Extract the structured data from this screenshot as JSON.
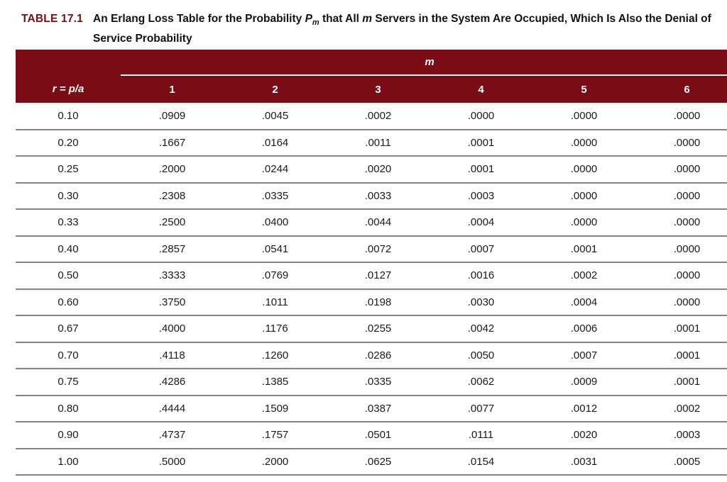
{
  "title": {
    "label": "TABLE 17.1",
    "parts": {
      "t1": "An Erlang Loss Table for the Probability ",
      "p_symbol": "P",
      "p_subscript": "m",
      "t2": " that All ",
      "m_symbol": "m",
      "t3a": " Servers in the System Are Occupied, Which Is Also the Denial of",
      "t3b": "Service Probability"
    }
  },
  "table": {
    "group_header": "m",
    "corner_label": "r = p/a",
    "columns": [
      "1",
      "2",
      "3",
      "4",
      "5",
      "6"
    ],
    "rows": [
      {
        "r": "0.10",
        "values": [
          ".0909",
          ".0045",
          ".0002",
          ".0000",
          ".0000",
          ".0000"
        ]
      },
      {
        "r": "0.20",
        "values": [
          ".1667",
          ".0164",
          ".0011",
          ".0001",
          ".0000",
          ".0000"
        ]
      },
      {
        "r": "0.25",
        "values": [
          ".2000",
          ".0244",
          ".0020",
          ".0001",
          ".0000",
          ".0000"
        ]
      },
      {
        "r": "0.30",
        "values": [
          ".2308",
          ".0335",
          ".0033",
          ".0003",
          ".0000",
          ".0000"
        ]
      },
      {
        "r": "0.33",
        "values": [
          ".2500",
          ".0400",
          ".0044",
          ".0004",
          ".0000",
          ".0000"
        ]
      },
      {
        "r": "0.40",
        "values": [
          ".2857",
          ".0541",
          ".0072",
          ".0007",
          ".0001",
          ".0000"
        ]
      },
      {
        "r": "0.50",
        "values": [
          ".3333",
          ".0769",
          ".0127",
          ".0016",
          ".0002",
          ".0000"
        ]
      },
      {
        "r": "0.60",
        "values": [
          ".3750",
          ".1011",
          ".0198",
          ".0030",
          ".0004",
          ".0000"
        ]
      },
      {
        "r": "0.67",
        "values": [
          ".4000",
          ".1176",
          ".0255",
          ".0042",
          ".0006",
          ".0001"
        ]
      },
      {
        "r": "0.70",
        "values": [
          ".4118",
          ".1260",
          ".0286",
          ".0050",
          ".0007",
          ".0001"
        ]
      },
      {
        "r": "0.75",
        "values": [
          ".4286",
          ".1385",
          ".0335",
          ".0062",
          ".0009",
          ".0001"
        ]
      },
      {
        "r": "0.80",
        "values": [
          ".4444",
          ".1509",
          ".0387",
          ".0077",
          ".0012",
          ".0002"
        ]
      },
      {
        "r": "0.90",
        "values": [
          ".4737",
          ".1757",
          ".0501",
          ".0111",
          ".0020",
          ".0003"
        ]
      },
      {
        "r": "1.00",
        "values": [
          ".5000",
          ".2000",
          ".0625",
          ".0154",
          ".0031",
          ".0005"
        ]
      }
    ]
  },
  "colors": {
    "header_bg": "#7a0c15",
    "accent_red": "#7a0c15",
    "divider": "#848484",
    "text_dark": "#1a1a1a"
  }
}
